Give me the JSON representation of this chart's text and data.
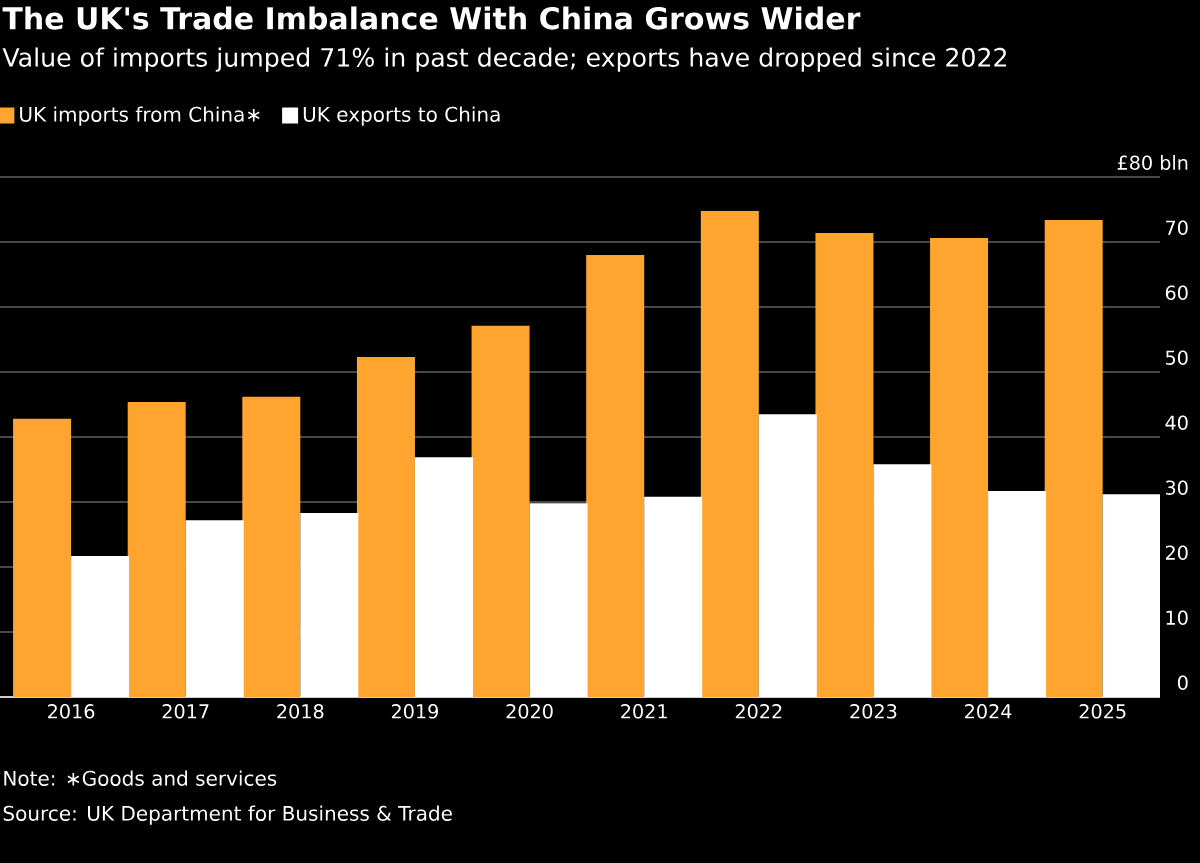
{
  "chart_data": {
    "type": "bar",
    "title": "The UK's Trade Imbalance With China Grows Wider",
    "subtitle": "Value of imports jumped 71% in past decade; exports have dropped since 2022",
    "categories": [
      "2016",
      "2017",
      "2018",
      "2019",
      "2020",
      "2021",
      "2022",
      "2023",
      "2024",
      "2025"
    ],
    "series": [
      {
        "name": "UK imports from China∗",
        "color": "#ffa52f",
        "values": [
          42.8,
          45.4,
          46.2,
          52.3,
          57.1,
          68.0,
          74.8,
          71.4,
          70.6,
          73.4
        ]
      },
      {
        "name": "UK exports to China",
        "color": "#ffffff",
        "values": [
          21.7,
          27.2,
          28.3,
          36.9,
          29.8,
          30.8,
          43.5,
          35.8,
          31.7,
          31.2
        ]
      }
    ],
    "ylim": [
      0,
      80
    ],
    "yticks": [
      0,
      10,
      20,
      30,
      40,
      50,
      60,
      70,
      {
        "value": 80,
        "label": "£80 bln"
      }
    ],
    "grid": "y",
    "legend": "top left",
    "annotations": [
      "Note: ∗Goods and services",
      "Source: UK Department for Business & Trade"
    ]
  }
}
